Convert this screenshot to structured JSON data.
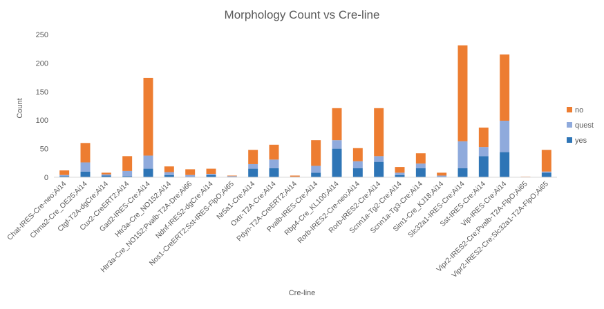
{
  "chart_data": {
    "type": "bar",
    "stacked": true,
    "title": "Morphology Count vs Cre-line",
    "xlabel": "Cre-line",
    "ylabel": "Count",
    "ylim": [
      0,
      250
    ],
    "yticks": [
      0,
      50,
      100,
      150,
      200,
      250
    ],
    "grid": false,
    "legend_position": "right",
    "categories": [
      "Chat-IRES-Cre-neo;Ai14",
      "Chrna2-Cre_OE25;Ai14",
      "Ctgf-T2A-dgCre;Ai14",
      "Cux2-CreERT2;Ai14",
      "Gad2-IRES-Cre;Ai14",
      "Htr3a-Cre_NO152;Ai14",
      "Htr3a-Cre_NO152;Pvalb-T2A-Dre;Ai66",
      "Ndnf-IRES2-dgCre;Ai14",
      "Nos1-CreERT2;Sst-IRES-FlpO;Ai65",
      "Nr5a1-Cre;Ai14",
      "Oxtr-T2A-Cre;Ai14",
      "Pdyn-T2A-CreERT2;Ai14",
      "Pvalb-IRES-Cre;Ai14",
      "Rbp4-Cre_KL100;Ai14",
      "Rorb-IRES2-Cre-neo;Ai14",
      "Rorb-IRES2-Cre;Ai14",
      "Scnn1a-Tg2-Cre;Ai14",
      "Scnn1a-Tg3-Cre;Ai14",
      "Sim1-Cre_KJ18;Ai14",
      "Slc32a1-IRES-Cre;Ai14",
      "Sst-IRES-Cre;Ai14",
      "Vip-IRES-Cre;Ai14",
      "Vipr2-IRES2-Cre;Pvalb-T2A-FlpO;Ai65",
      "Vipr2-IRES2-Cre;Slc32a1-T2A-FlpO;Ai65"
    ],
    "series": [
      {
        "name": "yes",
        "color": "#2E75B6",
        "values": [
          2,
          10,
          3,
          2,
          15,
          4,
          1,
          4,
          1,
          15,
          16,
          0,
          8,
          50,
          16,
          27,
          4,
          16,
          1,
          16,
          37,
          44,
          0,
          8
        ]
      },
      {
        "name": "quest",
        "color": "#8FAADC",
        "values": [
          2,
          16,
          2,
          9,
          23,
          5,
          3,
          2,
          1,
          8,
          15,
          1,
          12,
          15,
          12,
          10,
          4,
          8,
          2,
          47,
          16,
          55,
          0,
          2
        ]
      },
      {
        "name": "no",
        "color": "#ED7D31",
        "values": [
          8,
          34,
          3,
          26,
          136,
          10,
          10,
          9,
          1,
          25,
          26,
          2,
          45,
          56,
          23,
          84,
          10,
          18,
          5,
          168,
          34,
          116,
          1,
          38
        ]
      }
    ],
    "legend_order": [
      "no",
      "quest",
      "yes"
    ]
  }
}
